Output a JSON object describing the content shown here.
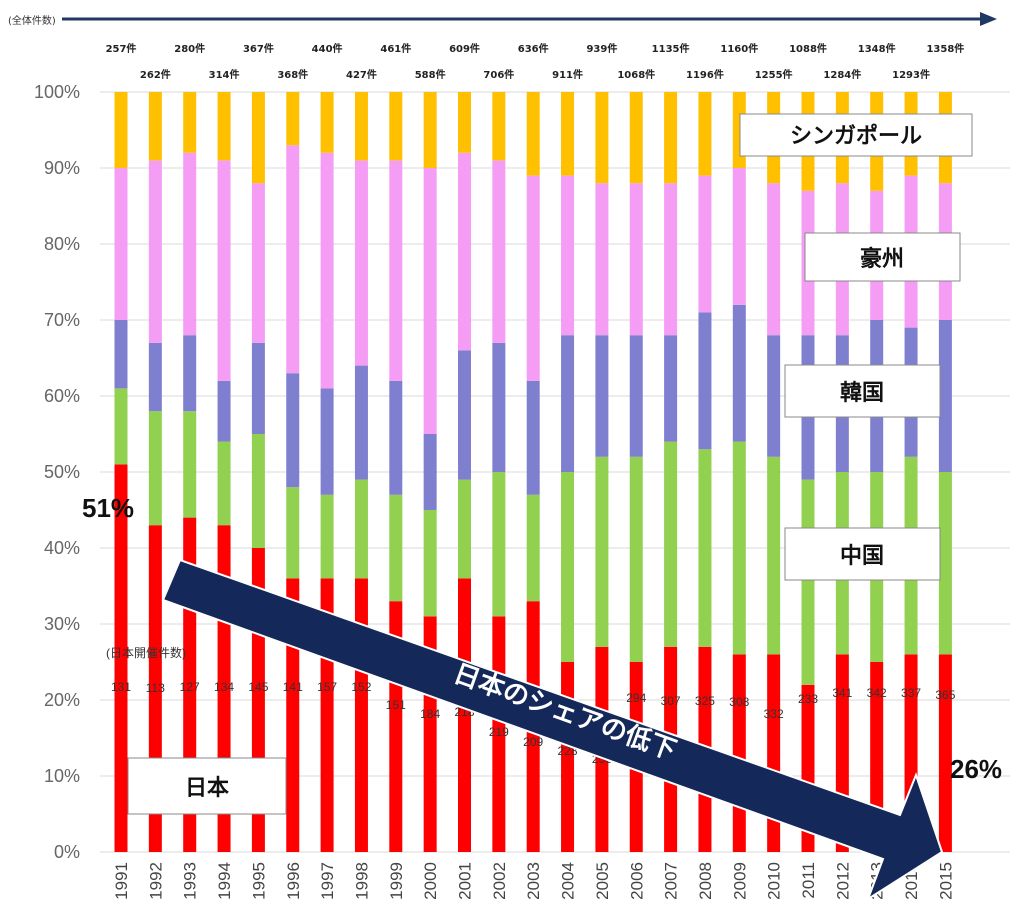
{
  "labels": {
    "total_header": "(全体件数)",
    "japan_count_header": "(日本開催件数)",
    "arrow_text": "日本のシェアの低下",
    "japan_start_pct": "51%",
    "japan_end_pct": "26%"
  },
  "colors": {
    "日本": "#ff0000",
    "中国": "#92d050",
    "韓国": "#7f7fd0",
    "豪州": "#f59cf5",
    "シンガポール": "#ffc000",
    "arrow": "#14285a"
  },
  "chart_data": {
    "type": "bar",
    "stacked": true,
    "percent_stacked": true,
    "categories": [
      "1991",
      "1992",
      "1993",
      "1994",
      "1995",
      "1996",
      "1997",
      "1998",
      "1999",
      "2000",
      "2001",
      "2002",
      "2003",
      "2004",
      "2005",
      "2006",
      "2007",
      "2008",
      "2009",
      "2010",
      "2011",
      "2012",
      "2013",
      "2014",
      "2015"
    ],
    "yticks": [
      "0%",
      "10%",
      "20%",
      "30%",
      "40%",
      "50%",
      "60%",
      "70%",
      "80%",
      "90%",
      "100%"
    ],
    "ylim": [
      0,
      100
    ],
    "series": [
      {
        "name": "日本",
        "values": [
          51,
          43,
          44,
          43,
          40,
          36,
          36,
          36,
          33,
          31,
          36,
          31,
          33,
          25,
          27,
          25,
          27,
          27,
          26,
          26,
          22,
          26,
          25,
          26,
          26
        ]
      },
      {
        "name": "中国",
        "values": [
          10,
          15,
          14,
          11,
          15,
          12,
          11,
          13,
          14,
          14,
          13,
          19,
          14,
          25,
          25,
          27,
          27,
          26,
          28,
          26,
          27,
          24,
          25,
          26,
          24
        ]
      },
      {
        "name": "韓国",
        "values": [
          9,
          9,
          10,
          8,
          12,
          15,
          14,
          15,
          15,
          10,
          17,
          17,
          15,
          18,
          16,
          16,
          14,
          18,
          18,
          16,
          19,
          18,
          20,
          17,
          20
        ]
      },
      {
        "name": "豪州",
        "values": [
          20,
          24,
          24,
          29,
          21,
          30,
          31,
          27,
          29,
          35,
          26,
          24,
          27,
          21,
          20,
          20,
          20,
          18,
          18,
          20,
          19,
          20,
          17,
          20,
          18
        ]
      },
      {
        "name": "シンガポール",
        "values": [
          10,
          9,
          8,
          9,
          12,
          7,
          8,
          9,
          9,
          10,
          8,
          9,
          11,
          11,
          12,
          12,
          12,
          11,
          10,
          12,
          13,
          12,
          13,
          11,
          12
        ]
      }
    ],
    "totals": [
      "257件",
      "262件",
      "280件",
      "314件",
      "367件",
      "368件",
      "440件",
      "427件",
      "461件",
      "588件",
      "609件",
      "706件",
      "636件",
      "911件",
      "939件",
      "1068件",
      "1135件",
      "1196件",
      "1160件",
      "1255件",
      "1088件",
      "1284件",
      "1348件",
      "1293件",
      "1358件"
    ],
    "japan_counts": [
      "131",
      "113",
      "127",
      "134",
      "145",
      "141",
      "157",
      "152",
      "151",
      "184",
      "218",
      "219",
      "209",
      "228",
      "258",
      "294",
      "307",
      "325",
      "308",
      "332",
      "233",
      "341",
      "342",
      "337",
      "365"
    ]
  }
}
